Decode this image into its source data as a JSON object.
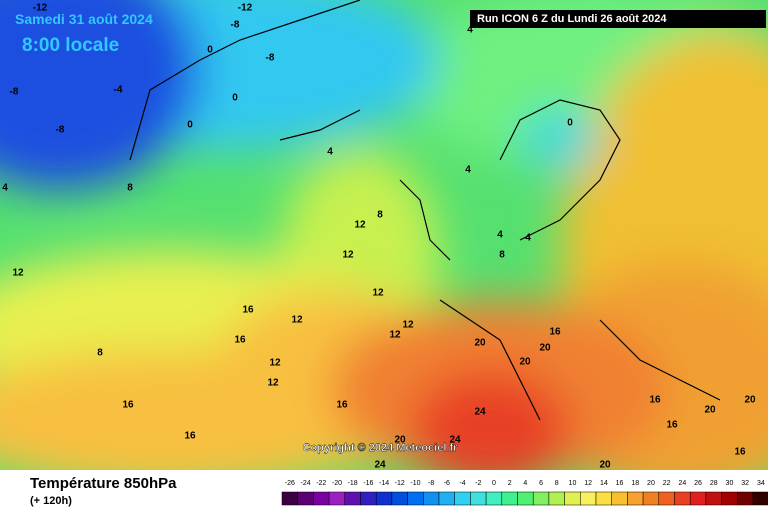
{
  "header": {
    "date": "Samedi 31 août 2024",
    "time": "8:00 locale",
    "run": "Run ICON 6 Z du Lundi 26 août 2024"
  },
  "map": {
    "copyright": "Copyright © 2024 Meteociel.fr",
    "contour_labels": [
      -12,
      -12,
      -8,
      -8,
      0,
      0,
      0,
      -4,
      -8,
      -8,
      4,
      8,
      4,
      0,
      4,
      8,
      12,
      12,
      12,
      4,
      4,
      8,
      12,
      12,
      12,
      16,
      16,
      8,
      16,
      16,
      12,
      12,
      16,
      20,
      20,
      20,
      24,
      24,
      20,
      24,
      20,
      16,
      20,
      20,
      16,
      16,
      16,
      12,
      4
    ]
  },
  "footer": {
    "title": "Température 850hPa",
    "subtitle": "(+ 120h)"
  },
  "legend": {
    "ticks": [
      -26,
      -24,
      -22,
      -20,
      -18,
      -16,
      -14,
      -12,
      -10,
      -8,
      -6,
      -4,
      -2,
      0,
      2,
      4,
      6,
      8,
      10,
      12,
      14,
      16,
      18,
      20,
      22,
      24,
      26,
      28,
      30,
      32,
      34
    ],
    "colors": [
      "#3a0040",
      "#5a0070",
      "#7a00a0",
      "#9a20c0",
      "#6010b0",
      "#3020c0",
      "#1030d0",
      "#0050e0",
      "#0070f0",
      "#1090f0",
      "#20b0f0",
      "#30d0f0",
      "#40e0e0",
      "#40f0c0",
      "#40f090",
      "#50f070",
      "#80f060",
      "#b0f050",
      "#e0f050",
      "#f8f060",
      "#f8e040",
      "#f8c030",
      "#f8a030",
      "#f08020",
      "#f06020",
      "#e84020",
      "#e02020",
      "#c01010",
      "#a00000",
      "#700000",
      "#300000"
    ]
  }
}
